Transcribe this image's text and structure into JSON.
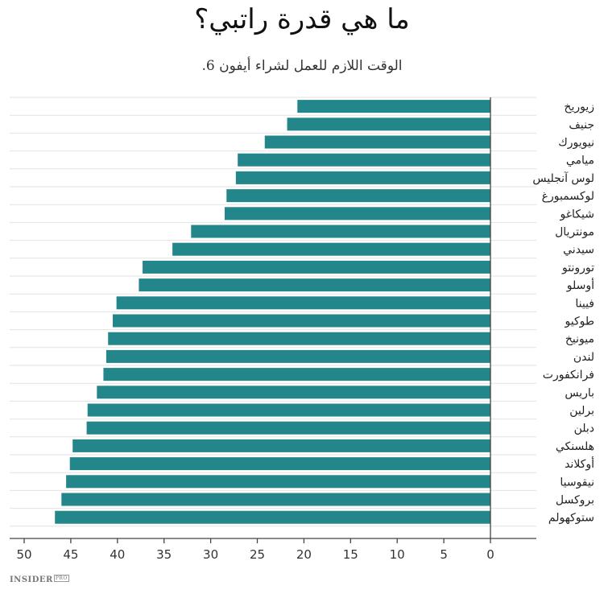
{
  "title": "ما هي قدرة راتبي؟",
  "subtitle": "الوقت اللازم للعمل لشراء أيفون 6.",
  "brand": {
    "name": "INSIDER",
    "tag": "PRO"
  },
  "colors": {
    "bar": "#23868a",
    "grid": "#e2e2e2",
    "axis": "#444444"
  },
  "chart_data": {
    "type": "bar",
    "orientation": "horizontal",
    "x_reversed": true,
    "title": "ما هي قدرة راتبي؟",
    "subtitle": "الوقت اللازم للعمل لشراء أيفون 6.",
    "xlabel": "",
    "ylabel": "",
    "xlim": [
      0,
      50
    ],
    "xticks": [
      50,
      45,
      40,
      35,
      30,
      25,
      20,
      15,
      10,
      5,
      0
    ],
    "grid": true,
    "categories": [
      "زيوريخ",
      "جنيف",
      "نيويورك",
      "ميامي",
      "لوس آنجليس",
      "لوكسمبورغ",
      "شيكاغو",
      "مونتريال",
      "سيدني",
      "تورونتو",
      "أوسلو",
      "فيينا",
      "طوكيو",
      "ميونيخ",
      "لندن",
      "فرانكفورت",
      "باريس",
      "برلين",
      "دبلن",
      "هلسنكي",
      "أوكلاند",
      "نيقوسيا",
      "بروكسل",
      "ستوكهولم"
    ],
    "values": [
      20.7,
      21.8,
      24.2,
      27.1,
      27.3,
      28.3,
      28.5,
      32.1,
      34.1,
      37.3,
      37.7,
      40.1,
      40.5,
      41.0,
      41.2,
      41.5,
      42.2,
      43.2,
      43.3,
      44.8,
      45.1,
      45.5,
      46.0,
      46.7
    ]
  }
}
